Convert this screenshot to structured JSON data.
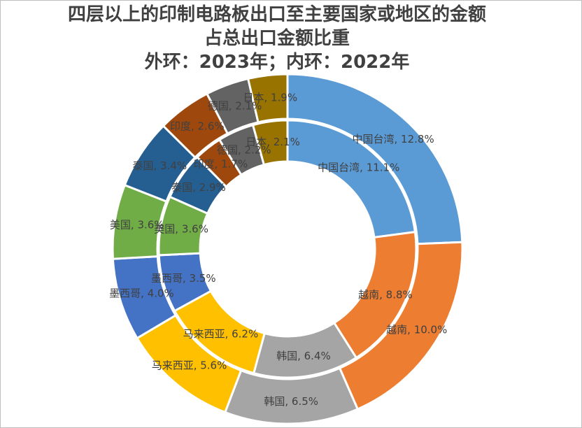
{
  "chart_data": {
    "type": "donut",
    "title_lines": [
      "四层以上的印制电路板出口至主要国家或地区的金额",
      "占总出口金额比重",
      "外环：2023年；内环：2022年"
    ],
    "categories": [
      "中国台湾",
      "越南",
      "韩国",
      "马来西亚",
      "墨西哥",
      "美国",
      "泰国",
      "印度",
      "德国",
      "日本"
    ],
    "colors": [
      "#5b9bd5",
      "#ed7d31",
      "#a5a5a5",
      "#ffc000",
      "#4472c4",
      "#70ad47",
      "#255e91",
      "#9e480e",
      "#636363",
      "#997300"
    ],
    "series": [
      {
        "ring": "outer",
        "year": "2023",
        "values": [
          12.8,
          10.0,
          6.5,
          5.6,
          4.0,
          3.6,
          3.4,
          2.6,
          2.1,
          1.9
        ],
        "labels": [
          "中国台湾, 12.8%",
          "越南, 10.0%",
          "韩国, 6.5%",
          "马来西亚, 5.6%",
          "墨西哥, 4.0%",
          "美国, 3.6%",
          "泰国, 3.4%",
          "印度, 2.6%",
          "德国, 2.1%",
          "日本, 1.9%"
        ]
      },
      {
        "ring": "inner",
        "year": "2022",
        "values": [
          11.1,
          8.8,
          6.4,
          6.2,
          3.5,
          3.6,
          2.9,
          1.7,
          2.2,
          2.1
        ],
        "labels": [
          "中国台湾, 11.1%",
          "越南, 8.8%",
          "韩国, 6.4%",
          "马来西亚, 6.2%",
          "墨西哥, 3.5%",
          "美国, 3.6%",
          "泰国, 2.9%",
          "印度, 1.7%",
          "德国, 2.2%",
          "日本, 2.1%"
        ]
      }
    ],
    "data_labels_unit": "%",
    "legend": "none"
  }
}
